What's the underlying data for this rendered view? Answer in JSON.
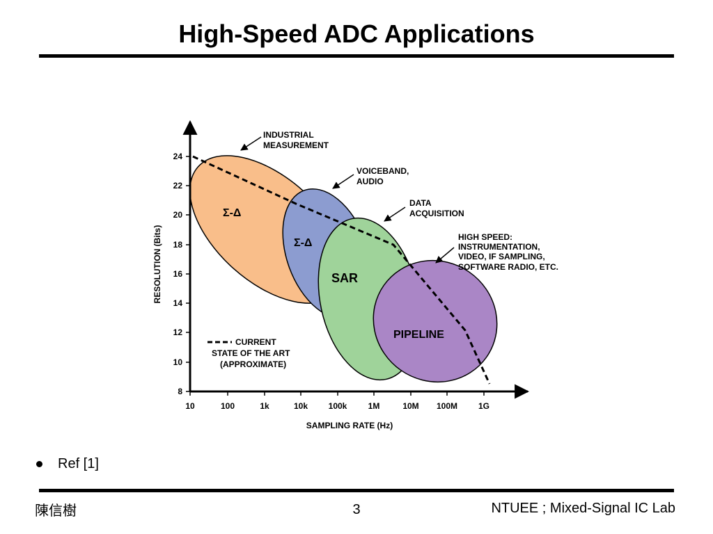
{
  "slide": {
    "title": "High-Speed ADC Applications",
    "bullet": "Ref [1]",
    "footer_left": "陳信樹",
    "footer_page": "3",
    "footer_right": "NTUEE ; Mixed-Signal IC Lab"
  },
  "diagram": {
    "y_axis_label": "RESOLUTION (Bits)",
    "x_axis_label": "SAMPLING RATE (Hz)",
    "y_ticks": [
      "8",
      "10",
      "12",
      "14",
      "16",
      "18",
      "20",
      "22",
      "24"
    ],
    "x_ticks": [
      "10",
      "100",
      "1k",
      "10k",
      "100k",
      "1M",
      "10M",
      "100M",
      "1G"
    ],
    "regions": [
      {
        "label": "Σ-Δ",
        "color": "#f9be8a"
      },
      {
        "label": "Σ-Δ",
        "color": "#8c9cd0"
      },
      {
        "label": "SAR",
        "color": "#9fd39a"
      },
      {
        "label": "PIPELINE",
        "color": "#aa86c6"
      }
    ],
    "callouts": [
      {
        "lines": [
          "INDUSTRIAL",
          "MEASUREMENT"
        ]
      },
      {
        "lines": [
          "VOICEBAND,",
          "AUDIO"
        ]
      },
      {
        "lines": [
          "DATA",
          "ACQUISITION"
        ]
      },
      {
        "lines": [
          "HIGH SPEED:",
          "INSTRUMENTATION,",
          "VIDEO, IF SAMPLING,",
          "SOFTWARE RADIO, ETC."
        ]
      }
    ],
    "legend_lines": [
      "CURRENT",
      "STATE OF THE ART",
      "(APPROXIMATE)"
    ]
  }
}
